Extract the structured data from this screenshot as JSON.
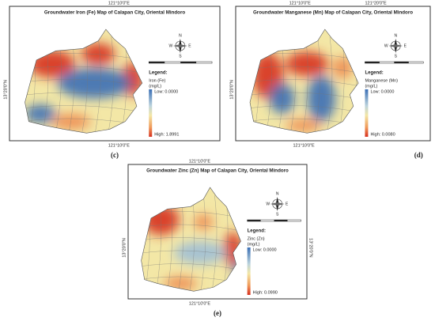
{
  "panels": [
    {
      "title": "Groundwater Iron (Fe) Map of Calapan City, Oriental Mindoro",
      "top_labels": [
        "121°10'0\"E"
      ],
      "left_label": "13°20'0\"N",
      "bottom_label": "121°10'0\"E",
      "compass": [
        "N",
        "S",
        "E",
        "W"
      ],
      "legend": {
        "heading": "Legend:",
        "variable": "Iron (Fe)",
        "unit": "(mg/L)",
        "low": "Low: 0.0000",
        "high": "High: 1.8991"
      },
      "caption": "(c)"
    },
    {
      "title": "Groundwater Manganese (Mn) Map of Calapan City, Oriental Mindoro",
      "top_labels": [
        "121°10'0\"E",
        "121°20'0\"E"
      ],
      "left_label": "13°20'0\"N",
      "bottom_label": "121°10'0\"E",
      "compass": [
        "N",
        "S",
        "E",
        "W"
      ],
      "legend": {
        "heading": "Legend:",
        "variable": "Manganese (Mn)",
        "unit": "(mg/L)",
        "low": "Low: 0.0000",
        "high": "High: 0.0080"
      },
      "caption": "(d)"
    },
    {
      "title": "Groundwater Zinc (Zn) Map of Calapan City, Oriental Mindoro",
      "top_labels": [
        "121°10'0\"E"
      ],
      "left_label": "13°20'0\"N",
      "right_label": "13°20'0\"N",
      "bottom_label": "121°10'0\"E",
      "compass": [
        "N",
        "S",
        "E",
        "W"
      ],
      "legend": {
        "heading": "Legend:",
        "variable": "Zinc (Zn)",
        "unit": "(mg/L)",
        "low": "Low: 0.0000",
        "high": "High: 0.0990"
      },
      "caption": "(e)"
    }
  ]
}
